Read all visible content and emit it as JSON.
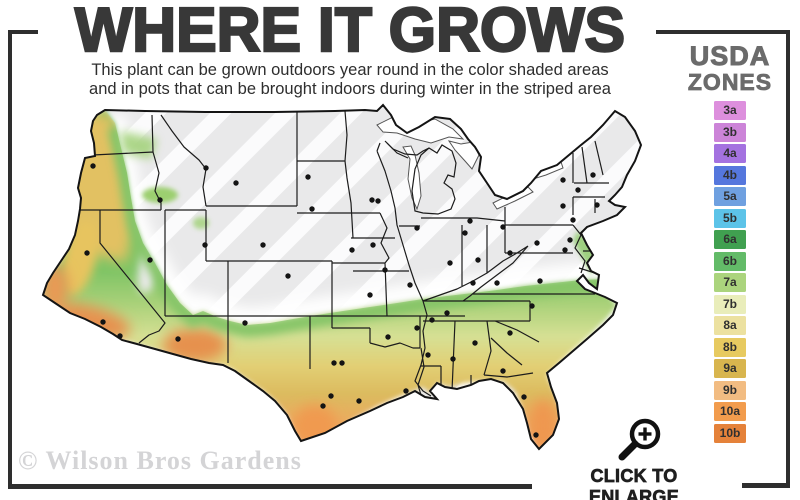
{
  "header": {
    "title": "WHERE IT GROWS",
    "subtitle_line1": "This plant can be grown outdoors year round in the color shaded areas",
    "subtitle_line2": "and in pots that can be brought indoors during winter in the striped area"
  },
  "legend": {
    "heading_line1": "USDA",
    "heading_line2": "ZONES",
    "zones": [
      {
        "label": "3a",
        "color": "#dd8fdd"
      },
      {
        "label": "3b",
        "color": "#cc84d8"
      },
      {
        "label": "4a",
        "color": "#a472e0"
      },
      {
        "label": "4b",
        "color": "#5577dd"
      },
      {
        "label": "5a",
        "color": "#6fa0e0"
      },
      {
        "label": "5b",
        "color": "#5cc3e8"
      },
      {
        "label": "6a",
        "color": "#40a050"
      },
      {
        "label": "6b",
        "color": "#63bb68"
      },
      {
        "label": "7a",
        "color": "#abd47d"
      },
      {
        "label": "7b",
        "color": "#e9edba"
      },
      {
        "label": "8a",
        "color": "#ece1a0"
      },
      {
        "label": "8b",
        "color": "#e7ca60"
      },
      {
        "label": "9a",
        "color": "#d8b54e"
      },
      {
        "label": "9b",
        "color": "#f2bc82"
      },
      {
        "label": "10a",
        "color": "#f29c4d"
      },
      {
        "label": "10b",
        "color": "#e5823a"
      }
    ]
  },
  "map": {
    "type": "usda-hardiness-zone-map",
    "region": "continental United States",
    "striped_area_meaning": "grow in pots, bring indoors during winter",
    "shaded_area_meaning": "grows outdoors year round",
    "striped_base_color": "#e9e9ea",
    "shaded_colors": [
      "#7fc465",
      "#a9d179",
      "#d6e094",
      "#e2cf74",
      "#dcba5e",
      "#ecaa5e",
      "#ef9950"
    ],
    "border_color": "#141414"
  },
  "footer": {
    "watermark": "© Wilson Bros Gardens",
    "enlarge_label": "CLICK TO ENLARGE"
  },
  "colors": {
    "frame": "#2e2e2e",
    "title_text": "#383838",
    "legend_heading": "#6b6b6b",
    "watermark_text": "#d4d4d6"
  }
}
